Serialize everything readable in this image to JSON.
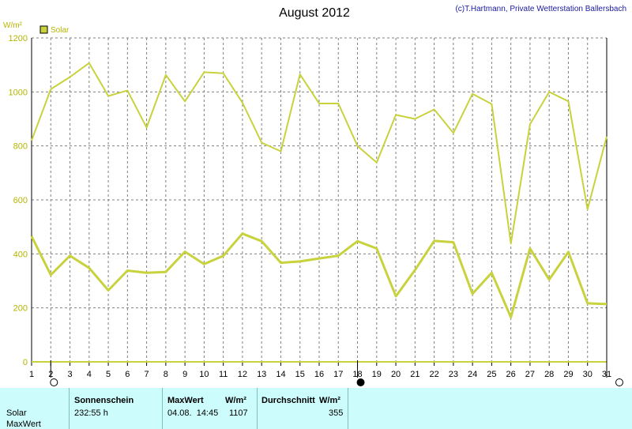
{
  "chart_data": {
    "type": "line",
    "title": "August 2012",
    "credit": "(c)T.Hartmann, Private Wetterstation Ballersbach",
    "ylabel": "W/m²",
    "ylim": [
      0,
      1200
    ],
    "yticks": [
      0,
      200,
      400,
      600,
      800,
      1000,
      1200
    ],
    "categories": [
      "1",
      "2",
      "3",
      "4",
      "5",
      "6",
      "7",
      "8",
      "9",
      "10",
      "11",
      "12",
      "13",
      "14",
      "15",
      "16",
      "17",
      "18",
      "19",
      "20",
      "21",
      "22",
      "23",
      "24",
      "25",
      "26",
      "27",
      "28",
      "29",
      "30",
      "31"
    ],
    "grid": true,
    "legend": "top-left",
    "series": [
      {
        "name": "Solar",
        "role": "max",
        "color": "#c8d23c",
        "values": [
          820,
          1010,
          1055,
          1107,
          985,
          1005,
          868,
          1063,
          965,
          1073,
          1069,
          960,
          812,
          780,
          1065,
          957,
          957,
          800,
          738,
          915,
          900,
          935,
          848,
          993,
          955,
          438,
          880,
          1000,
          965,
          565,
          835
        ]
      },
      {
        "name": "",
        "role": "average",
        "color": "#c8d23c",
        "values": [
          465,
          322,
          393,
          348,
          265,
          338,
          330,
          333,
          408,
          362,
          393,
          475,
          447,
          367,
          372,
          383,
          393,
          447,
          420,
          243,
          340,
          448,
          443,
          252,
          330,
          165,
          420,
          305,
          407,
          217,
          214
        ]
      }
    ],
    "moon_markers": [
      {
        "day": 2,
        "phase": "full-moon-icon"
      },
      {
        "day": 18,
        "phase": "new-moon-icon"
      },
      {
        "day": 31,
        "phase": "full-moon-icon"
      }
    ]
  },
  "footer": {
    "row_label_solar": "Solar",
    "row_label_maxwert": "MaxWert",
    "sunshine_header": "Sonnenschein",
    "sunshine_value": "232:55 h",
    "maxwert_header": "MaxWert",
    "maxwert_unit": "W/m²",
    "maxwert_datetime": "04.08.  14:45",
    "maxwert_value": "1107",
    "avg_header": "Durchschnitt",
    "avg_unit": "W/m²",
    "avg_value": "355"
  },
  "colors": {
    "series": "#c8d23c",
    "axis_label": "#b5b500",
    "footer_bg": "#ccfcfc"
  }
}
